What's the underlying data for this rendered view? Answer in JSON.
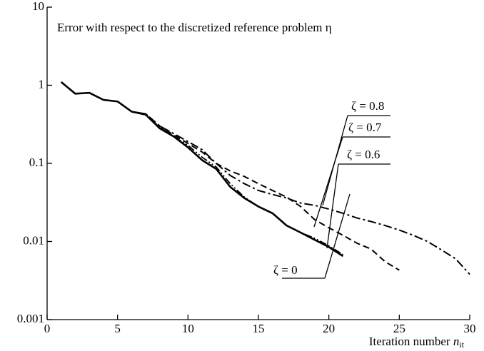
{
  "chart_data": {
    "type": "line",
    "annotation": "Error with respect to the discretized reference problem η",
    "xlabel": "Iteration number",
    "xlabel_var": "n",
    "xlabel_sub": "it",
    "log_y": true,
    "x": [
      1,
      2,
      3,
      4,
      5,
      6,
      7,
      8,
      9,
      10,
      11,
      12,
      13,
      14,
      15,
      16,
      17,
      18,
      19,
      20,
      21,
      22,
      23,
      24,
      25,
      26,
      27,
      28,
      29,
      30
    ],
    "xlim": [
      0,
      30
    ],
    "xticks": [
      0,
      5,
      10,
      15,
      20,
      25,
      30
    ],
    "ylim": [
      0.001,
      10
    ],
    "yticks": [
      0.001,
      0.01,
      0.1,
      1,
      10
    ],
    "series": [
      {
        "name": "ζ = 0",
        "color": "#000000",
        "dash": "solid",
        "values": [
          1.1,
          0.78,
          0.8,
          0.65,
          0.62,
          0.46,
          0.42,
          0.28,
          0.22,
          0.16,
          0.11,
          0.085,
          0.05,
          0.036,
          0.028,
          0.023,
          0.016,
          0.013,
          0.0105,
          0.0085,
          0.0065,
          null,
          null,
          null,
          null,
          null,
          null,
          null,
          null,
          null
        ]
      },
      {
        "name": "ζ = 0.6",
        "color": "#000000",
        "dash": "dashdotdot",
        "values": [
          1.1,
          0.78,
          0.8,
          0.65,
          0.62,
          0.46,
          0.43,
          0.29,
          0.22,
          0.17,
          0.12,
          0.09,
          0.055,
          0.037,
          0.028,
          0.023,
          0.016,
          0.013,
          0.011,
          0.0088,
          0.0068,
          null,
          null,
          null,
          null,
          null,
          null,
          null,
          null,
          null
        ]
      },
      {
        "name": "ζ = 0.7",
        "color": "#000000",
        "dash": "dashed",
        "values": [
          1.1,
          0.78,
          0.8,
          0.65,
          0.62,
          0.46,
          0.43,
          0.3,
          0.23,
          0.18,
          0.14,
          0.1,
          0.08,
          0.068,
          0.055,
          0.045,
          0.037,
          0.028,
          0.019,
          0.015,
          0.012,
          0.0095,
          0.008,
          0.0055,
          0.0043,
          null,
          null,
          null,
          null,
          null
        ]
      },
      {
        "name": "ζ = 0.8",
        "color": "#000000",
        "dash": "dashdot",
        "values": [
          1.1,
          0.78,
          0.8,
          0.65,
          0.62,
          0.46,
          0.43,
          0.3,
          0.24,
          0.19,
          0.15,
          0.1,
          0.07,
          0.055,
          0.045,
          0.04,
          0.036,
          0.031,
          0.029,
          0.026,
          0.023,
          0.02,
          0.018,
          0.016,
          0.014,
          0.012,
          0.01,
          0.0078,
          0.006,
          0.0038
        ]
      }
    ]
  }
}
